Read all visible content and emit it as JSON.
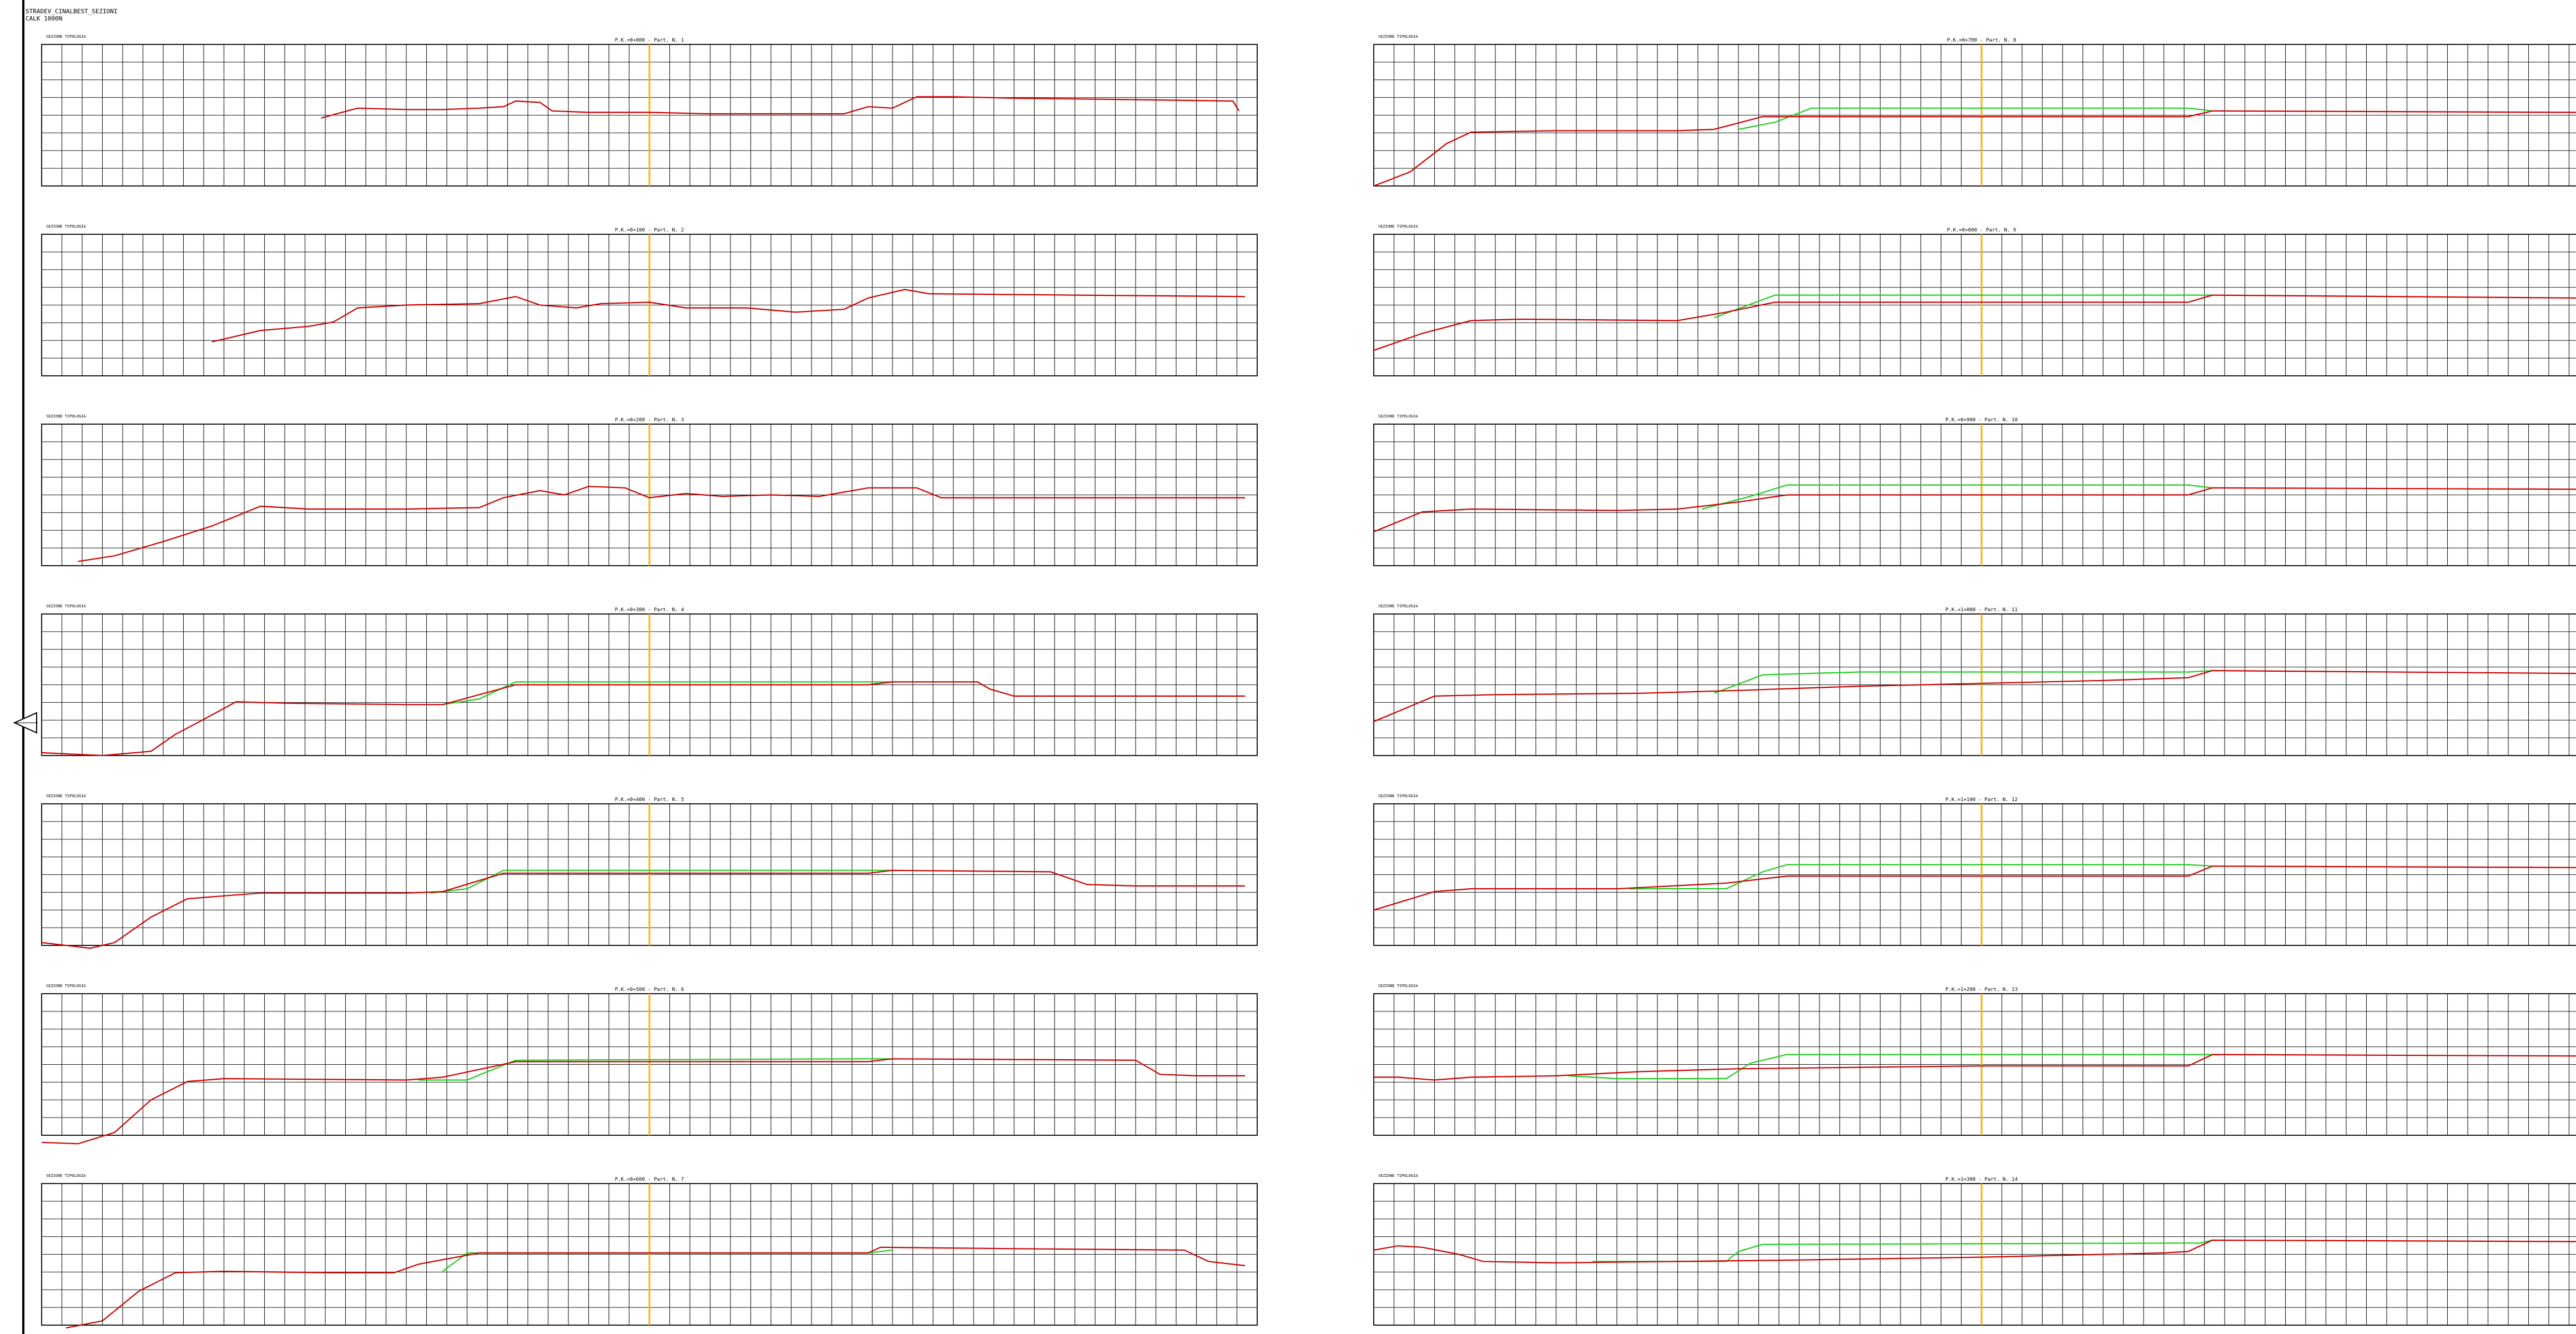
{
  "document": {
    "line1": "STRADEV_CINALBEST_SEZIONI",
    "line2": "CALK 1000N"
  },
  "colors": {
    "grid": "#1a1a1a",
    "profile_red": "#cc0000",
    "profile_green": "#22cc22",
    "axis_marker": "#ffb000"
  },
  "nav": {
    "icon": "left-triangle-arrow-icon"
  },
  "panels": [
    {
      "title": "P.K.=0+000 - Part. N. 1",
      "label": "SEZIONE TIPOLOGIA",
      "red": [
        [
          0.23,
          0.52
        ],
        [
          0.26,
          0.45
        ],
        [
          0.3,
          0.46
        ],
        [
          0.33,
          0.46
        ],
        [
          0.36,
          0.45
        ],
        [
          0.38,
          0.44
        ],
        [
          0.39,
          0.4
        ],
        [
          0.41,
          0.41
        ],
        [
          0.42,
          0.47
        ],
        [
          0.45,
          0.48
        ],
        [
          0.5,
          0.48
        ],
        [
          0.55,
          0.49
        ],
        [
          0.66,
          0.49
        ],
        [
          0.68,
          0.44
        ],
        [
          0.7,
          0.45
        ],
        [
          0.72,
          0.37
        ],
        [
          0.75,
          0.37
        ],
        [
          0.8,
          0.38
        ],
        [
          0.9,
          0.39
        ],
        [
          0.98,
          0.4
        ],
        [
          0.985,
          0.47
        ]
      ],
      "green": []
    },
    {
      "title": "P.K.=0+100 - Part. N. 2",
      "label": "SEZIONE TIPOLOGIA",
      "red": [
        [
          0.14,
          0.76
        ],
        [
          0.18,
          0.68
        ],
        [
          0.22,
          0.65
        ],
        [
          0.24,
          0.62
        ],
        [
          0.26,
          0.52
        ],
        [
          0.3,
          0.5
        ],
        [
          0.36,
          0.49
        ],
        [
          0.39,
          0.44
        ],
        [
          0.41,
          0.5
        ],
        [
          0.44,
          0.52
        ],
        [
          0.46,
          0.49
        ],
        [
          0.5,
          0.48
        ],
        [
          0.53,
          0.52
        ],
        [
          0.58,
          0.52
        ],
        [
          0.62,
          0.55
        ],
        [
          0.66,
          0.53
        ],
        [
          0.68,
          0.45
        ],
        [
          0.71,
          0.39
        ],
        [
          0.73,
          0.42
        ],
        [
          0.85,
          0.43
        ],
        [
          0.99,
          0.44
        ]
      ],
      "green": []
    },
    {
      "title": "P.K.=0+200 - Part. N. 3",
      "label": "SEZIONE TIPOLOGIA",
      "red": [
        [
          0.03,
          0.97
        ],
        [
          0.06,
          0.93
        ],
        [
          0.1,
          0.83
        ],
        [
          0.14,
          0.72
        ],
        [
          0.16,
          0.65
        ],
        [
          0.18,
          0.58
        ],
        [
          0.22,
          0.6
        ],
        [
          0.3,
          0.6
        ],
        [
          0.36,
          0.59
        ],
        [
          0.38,
          0.52
        ],
        [
          0.41,
          0.47
        ],
        [
          0.43,
          0.5
        ],
        [
          0.45,
          0.44
        ],
        [
          0.48,
          0.45
        ],
        [
          0.5,
          0.52
        ],
        [
          0.53,
          0.49
        ],
        [
          0.56,
          0.51
        ],
        [
          0.6,
          0.5
        ],
        [
          0.64,
          0.51
        ],
        [
          0.68,
          0.45
        ],
        [
          0.72,
          0.45
        ],
        [
          0.74,
          0.52
        ],
        [
          0.85,
          0.52
        ],
        [
          0.99,
          0.52
        ]
      ],
      "green": []
    },
    {
      "title": "P.K.=0+300 - Part. N. 4",
      "label": "SEZIONE TIPOLOGIA",
      "red": [
        [
          0.0,
          0.98
        ],
        [
          0.05,
          1.0
        ],
        [
          0.09,
          0.97
        ],
        [
          0.11,
          0.85
        ],
        [
          0.13,
          0.76
        ],
        [
          0.16,
          0.62
        ],
        [
          0.2,
          0.63
        ],
        [
          0.3,
          0.64
        ],
        [
          0.33,
          0.64
        ],
        [
          0.39,
          0.5
        ],
        [
          0.45,
          0.5
        ],
        [
          0.68,
          0.5
        ],
        [
          0.7,
          0.48
        ],
        [
          0.77,
          0.48
        ],
        [
          0.78,
          0.53
        ],
        [
          0.8,
          0.58
        ],
        [
          0.9,
          0.58
        ],
        [
          0.99,
          0.58
        ]
      ],
      "green": [
        [
          0.33,
          0.64
        ],
        [
          0.36,
          0.6
        ],
        [
          0.39,
          0.48
        ],
        [
          0.68,
          0.48
        ],
        [
          0.7,
          0.48
        ]
      ]
    },
    {
      "title": "P.K.=0+400 - Part. N. 5",
      "label": "SEZIONE TIPOLOGIA",
      "red": [
        [
          0.0,
          0.98
        ],
        [
          0.04,
          1.02
        ],
        [
          0.06,
          0.98
        ],
        [
          0.09,
          0.8
        ],
        [
          0.12,
          0.67
        ],
        [
          0.18,
          0.63
        ],
        [
          0.3,
          0.63
        ],
        [
          0.33,
          0.62
        ],
        [
          0.38,
          0.49
        ],
        [
          0.45,
          0.49
        ],
        [
          0.68,
          0.49
        ],
        [
          0.7,
          0.47
        ],
        [
          0.83,
          0.48
        ],
        [
          0.86,
          0.57
        ],
        [
          0.9,
          0.58
        ],
        [
          0.99,
          0.58
        ]
      ],
      "green": [
        [
          0.32,
          0.63
        ],
        [
          0.35,
          0.6
        ],
        [
          0.38,
          0.47
        ],
        [
          0.68,
          0.47
        ],
        [
          0.7,
          0.47
        ]
      ]
    },
    {
      "title": "P.K.=0+500 - Part. N. 6",
      "label": "SEZIONE TIPOLOGIA",
      "red": [
        [
          0.0,
          1.05
        ],
        [
          0.03,
          1.06
        ],
        [
          0.06,
          0.98
        ],
        [
          0.09,
          0.75
        ],
        [
          0.12,
          0.62
        ],
        [
          0.15,
          0.6
        ],
        [
          0.3,
          0.61
        ],
        [
          0.33,
          0.59
        ],
        [
          0.39,
          0.48
        ],
        [
          0.45,
          0.48
        ],
        [
          0.68,
          0.48
        ],
        [
          0.7,
          0.46
        ],
        [
          0.9,
          0.47
        ],
        [
          0.92,
          0.57
        ],
        [
          0.95,
          0.58
        ],
        [
          0.99,
          0.58
        ]
      ],
      "green": [
        [
          0.31,
          0.61
        ],
        [
          0.35,
          0.61
        ],
        [
          0.39,
          0.47
        ],
        [
          0.68,
          0.46
        ],
        [
          0.7,
          0.46
        ]
      ]
    },
    {
      "title": "P.K.=0+600 - Part. N. 7",
      "label": "SEZIONE TIPOLOGIA",
      "red": [
        [
          0.02,
          1.02
        ],
        [
          0.05,
          0.97
        ],
        [
          0.08,
          0.76
        ],
        [
          0.11,
          0.63
        ],
        [
          0.15,
          0.62
        ],
        [
          0.24,
          0.63
        ],
        [
          0.29,
          0.63
        ],
        [
          0.31,
          0.57
        ],
        [
          0.36,
          0.49
        ],
        [
          0.45,
          0.49
        ],
        [
          0.68,
          0.49
        ],
        [
          0.69,
          0.45
        ],
        [
          0.8,
          0.46
        ],
        [
          0.94,
          0.47
        ],
        [
          0.96,
          0.55
        ],
        [
          0.99,
          0.58
        ]
      ],
      "green": [
        [
          0.33,
          0.62
        ],
        [
          0.35,
          0.49
        ],
        [
          0.68,
          0.49
        ],
        [
          0.7,
          0.47
        ]
      ]
    },
    {
      "title": "P.K.=0+700 - Part. N. 8",
      "label": "SEZIONE TIPOLOGIA",
      "red": [
        [
          0.0,
          1.0
        ],
        [
          0.03,
          0.9
        ],
        [
          0.06,
          0.7
        ],
        [
          0.08,
          0.62
        ],
        [
          0.15,
          0.61
        ],
        [
          0.25,
          0.61
        ],
        [
          0.28,
          0.6
        ],
        [
          0.32,
          0.51
        ],
        [
          0.4,
          0.51
        ],
        [
          0.67,
          0.51
        ],
        [
          0.69,
          0.47
        ],
        [
          0.99,
          0.48
        ]
      ],
      "green": [
        [
          0.3,
          0.6
        ],
        [
          0.33,
          0.55
        ],
        [
          0.36,
          0.45
        ],
        [
          0.67,
          0.45
        ],
        [
          0.69,
          0.47
        ]
      ]
    },
    {
      "title": "P.K.=0+800 - Part. N. 9",
      "label": "SEZIONE TIPOLOGIA",
      "red": [
        [
          0.0,
          0.82
        ],
        [
          0.04,
          0.7
        ],
        [
          0.08,
          0.61
        ],
        [
          0.12,
          0.6
        ],
        [
          0.25,
          0.61
        ],
        [
          0.29,
          0.55
        ],
        [
          0.33,
          0.48
        ],
        [
          0.5,
          0.48
        ],
        [
          0.67,
          0.48
        ],
        [
          0.69,
          0.43
        ],
        [
          0.99,
          0.45
        ]
      ],
      "green": [
        [
          0.28,
          0.59
        ],
        [
          0.33,
          0.43
        ],
        [
          0.67,
          0.43
        ],
        [
          0.69,
          0.43
        ]
      ]
    },
    {
      "title": "P.K.=0+900 - Part. N. 10",
      "label": "SEZIONE TIPOLOGIA",
      "red": [
        [
          0.0,
          0.76
        ],
        [
          0.04,
          0.62
        ],
        [
          0.08,
          0.6
        ],
        [
          0.2,
          0.61
        ],
        [
          0.25,
          0.6
        ],
        [
          0.3,
          0.55
        ],
        [
          0.34,
          0.5
        ],
        [
          0.5,
          0.5
        ],
        [
          0.67,
          0.5
        ],
        [
          0.69,
          0.45
        ],
        [
          0.99,
          0.46
        ]
      ],
      "green": [
        [
          0.27,
          0.6
        ],
        [
          0.31,
          0.51
        ],
        [
          0.34,
          0.43
        ],
        [
          0.67,
          0.43
        ],
        [
          0.69,
          0.45
        ]
      ]
    },
    {
      "title": "P.K.=1+000 - Part. N. 11",
      "label": "SEZIONE TIPOLOGIA",
      "red": [
        [
          0.0,
          0.76
        ],
        [
          0.05,
          0.58
        ],
        [
          0.1,
          0.57
        ],
        [
          0.22,
          0.56
        ],
        [
          0.3,
          0.54
        ],
        [
          0.4,
          0.51
        ],
        [
          0.5,
          0.49
        ],
        [
          0.6,
          0.47
        ],
        [
          0.67,
          0.45
        ],
        [
          0.69,
          0.4
        ],
        [
          0.99,
          0.42
        ]
      ],
      "green": [
        [
          0.28,
          0.56
        ],
        [
          0.32,
          0.43
        ],
        [
          0.4,
          0.41
        ],
        [
          0.67,
          0.41
        ],
        [
          0.69,
          0.4
        ]
      ]
    },
    {
      "title": "P.K.=1+100 - Part. N. 12",
      "label": "SEZIONE TIPOLOGIA",
      "red": [
        [
          0.0,
          0.75
        ],
        [
          0.05,
          0.62
        ],
        [
          0.08,
          0.6
        ],
        [
          0.2,
          0.6
        ],
        [
          0.29,
          0.56
        ],
        [
          0.34,
          0.51
        ],
        [
          0.5,
          0.51
        ],
        [
          0.67,
          0.51
        ],
        [
          0.69,
          0.44
        ],
        [
          0.99,
          0.45
        ]
      ],
      "green": [
        [
          0.21,
          0.6
        ],
        [
          0.29,
          0.6
        ],
        [
          0.32,
          0.48
        ],
        [
          0.34,
          0.43
        ],
        [
          0.67,
          0.43
        ],
        [
          0.69,
          0.44
        ]
      ]
    },
    {
      "title": "P.K.=1+200 - Part. N. 13",
      "label": "SEZIONE TIPOLOGIA",
      "red": [
        [
          0.0,
          0.59
        ],
        [
          0.02,
          0.59
        ],
        [
          0.05,
          0.61
        ],
        [
          0.08,
          0.59
        ],
        [
          0.15,
          0.58
        ],
        [
          0.22,
          0.55
        ],
        [
          0.3,
          0.53
        ],
        [
          0.4,
          0.52
        ],
        [
          0.5,
          0.51
        ],
        [
          0.67,
          0.51
        ],
        [
          0.69,
          0.43
        ],
        [
          0.99,
          0.44
        ]
      ],
      "green": [
        [
          0.16,
          0.58
        ],
        [
          0.2,
          0.6
        ],
        [
          0.29,
          0.6
        ],
        [
          0.31,
          0.49
        ],
        [
          0.34,
          0.43
        ],
        [
          0.67,
          0.43
        ],
        [
          0.69,
          0.43
        ]
      ]
    },
    {
      "title": "P.K.=1+300 - Part. N. 14",
      "label": "SEZIONE TIPOLOGIA",
      "red": [
        [
          0.0,
          0.47
        ],
        [
          0.02,
          0.44
        ],
        [
          0.04,
          0.45
        ],
        [
          0.07,
          0.5
        ],
        [
          0.09,
          0.55
        ],
        [
          0.15,
          0.56
        ],
        [
          0.25,
          0.55
        ],
        [
          0.35,
          0.54
        ],
        [
          0.5,
          0.52
        ],
        [
          0.65,
          0.49
        ],
        [
          0.67,
          0.48
        ],
        [
          0.69,
          0.4
        ],
        [
          0.99,
          0.41
        ]
      ],
      "green": [
        [
          0.18,
          0.55
        ],
        [
          0.29,
          0.55
        ],
        [
          0.3,
          0.48
        ],
        [
          0.32,
          0.43
        ],
        [
          0.68,
          0.42
        ],
        [
          0.69,
          0.4
        ]
      ]
    }
  ]
}
